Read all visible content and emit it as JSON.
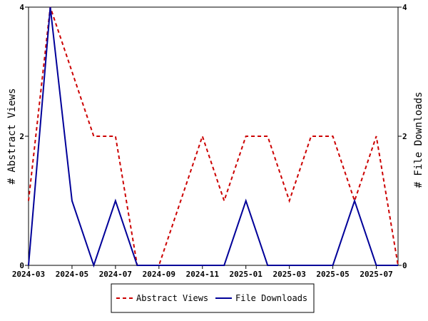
{
  "chart_data": {
    "type": "line",
    "x": [
      "2024-03",
      "2024-04",
      "2024-05",
      "2024-06",
      "2024-07",
      "2024-08",
      "2024-09",
      "2024-10",
      "2024-11",
      "2024-12",
      "2025-01",
      "2025-02",
      "2025-03",
      "2025-04",
      "2025-05",
      "2025-06",
      "2025-07",
      "2025-08"
    ],
    "x_ticks": [
      "2024-03",
      "2024-05",
      "2024-07",
      "2024-09",
      "2024-11",
      "2025-01",
      "2025-03",
      "2025-05",
      "2025-07"
    ],
    "ylabel_left": "# Abstract Views",
    "ylabel_right": "# File Downloads",
    "ylim_left": [
      0,
      4
    ],
    "ylim_right": [
      0,
      4
    ],
    "y_ticks_left": [
      "0",
      "2",
      "4"
    ],
    "y_ticks_right": [
      "0",
      "2",
      "4"
    ],
    "grid": false,
    "legend_position": "bottom",
    "series": [
      {
        "name": "Abstract Views",
        "axis": "left",
        "color": "#cc0000",
        "style": "dashed",
        "values": [
          1,
          4,
          3,
          2,
          2,
          0,
          0,
          1,
          2,
          1,
          2,
          2,
          1,
          2,
          2,
          1,
          2,
          0
        ]
      },
      {
        "name": "File Downloads",
        "axis": "right",
        "color": "#000099",
        "style": "solid",
        "values": [
          0,
          4,
          1,
          0,
          1,
          0,
          0,
          0,
          0,
          0,
          1,
          0,
          0,
          0,
          0,
          1,
          0,
          0
        ]
      }
    ]
  }
}
